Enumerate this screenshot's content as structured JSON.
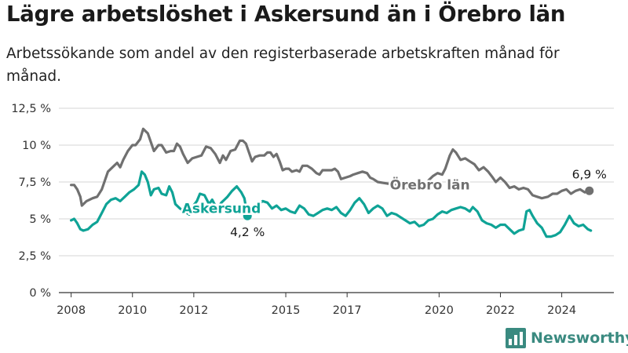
{
  "title": "Lägre arbetslöshet i Askersund än i Örebro län",
  "subtitle": "Arbetssökande som andel av den registerbaserade arbetskraften månad för månad.",
  "brand": {
    "name": "Newsworthy",
    "icon": "bar-chart-logo-icon",
    "color": "#3a8a80"
  },
  "chart_data": {
    "type": "line",
    "title": "Lägre arbetslöshet i Askersund än i Örebro län",
    "subtitle": "Arbetssökande som andel av den registerbaserade arbetskraften månad för månad.",
    "xlabel": "",
    "ylabel": "",
    "ylim": [
      0,
      12.5
    ],
    "xlim": [
      2007.6,
      2025.7
    ],
    "y_ticks": [
      0,
      2.5,
      5,
      7.5,
      10,
      12.5
    ],
    "y_tick_labels": [
      "0 %",
      "2,5 %",
      "5 %",
      "7,5 %",
      "10 %",
      "12,5 %"
    ],
    "x_ticks": [
      2008,
      2010,
      2012,
      2015,
      2017,
      2020,
      2022,
      2024
    ],
    "x_tick_labels": [
      "2008",
      "2010",
      "2012",
      "2015",
      "2017",
      "2020",
      "2022",
      "2024"
    ],
    "grid": true,
    "legend": "inline labels",
    "series": [
      {
        "name": "Örebro län",
        "color": "#707070",
        "end_label": "6,9 %",
        "points": [
          [
            2008.0,
            7.3
          ],
          [
            2008.1,
            7.3
          ],
          [
            2008.2,
            7.0
          ],
          [
            2008.3,
            6.5
          ],
          [
            2008.35,
            5.9
          ],
          [
            2008.5,
            6.2
          ],
          [
            2008.7,
            6.4
          ],
          [
            2008.85,
            6.5
          ],
          [
            2009.0,
            7.0
          ],
          [
            2009.1,
            7.6
          ],
          [
            2009.2,
            8.2
          ],
          [
            2009.4,
            8.6
          ],
          [
            2009.5,
            8.8
          ],
          [
            2009.6,
            8.5
          ],
          [
            2009.7,
            9.0
          ],
          [
            2009.85,
            9.6
          ],
          [
            2010.0,
            10.0
          ],
          [
            2010.1,
            10.0
          ],
          [
            2010.25,
            10.4
          ],
          [
            2010.35,
            11.1
          ],
          [
            2010.5,
            10.8
          ],
          [
            2010.6,
            10.2
          ],
          [
            2010.7,
            9.6
          ],
          [
            2010.85,
            10.0
          ],
          [
            2010.95,
            10.0
          ],
          [
            2011.1,
            9.5
          ],
          [
            2011.25,
            9.6
          ],
          [
            2011.35,
            9.6
          ],
          [
            2011.45,
            10.1
          ],
          [
            2011.55,
            9.9
          ],
          [
            2011.65,
            9.4
          ],
          [
            2011.8,
            8.8
          ],
          [
            2011.95,
            9.1
          ],
          [
            2012.1,
            9.2
          ],
          [
            2012.25,
            9.3
          ],
          [
            2012.4,
            9.9
          ],
          [
            2012.55,
            9.8
          ],
          [
            2012.7,
            9.4
          ],
          [
            2012.85,
            8.8
          ],
          [
            2012.95,
            9.3
          ],
          [
            2013.05,
            9.0
          ],
          [
            2013.2,
            9.6
          ],
          [
            2013.35,
            9.7
          ],
          [
            2013.5,
            10.3
          ],
          [
            2013.6,
            10.3
          ],
          [
            2013.7,
            10.1
          ],
          [
            2013.8,
            9.5
          ],
          [
            2013.9,
            8.9
          ],
          [
            2014.0,
            9.2
          ],
          [
            2014.15,
            9.3
          ],
          [
            2014.3,
            9.3
          ],
          [
            2014.4,
            9.5
          ],
          [
            2014.5,
            9.5
          ],
          [
            2014.6,
            9.2
          ],
          [
            2014.7,
            9.4
          ],
          [
            2014.8,
            8.9
          ],
          [
            2014.9,
            8.3
          ],
          [
            2015.0,
            8.4
          ],
          [
            2015.1,
            8.4
          ],
          [
            2015.2,
            8.2
          ],
          [
            2015.35,
            8.3
          ],
          [
            2015.45,
            8.2
          ],
          [
            2015.55,
            8.6
          ],
          [
            2015.7,
            8.6
          ],
          [
            2015.85,
            8.4
          ],
          [
            2016.0,
            8.1
          ],
          [
            2016.1,
            8.0
          ],
          [
            2016.2,
            8.3
          ],
          [
            2016.35,
            8.3
          ],
          [
            2016.5,
            8.3
          ],
          [
            2016.6,
            8.4
          ],
          [
            2016.7,
            8.2
          ],
          [
            2016.8,
            7.7
          ],
          [
            2016.95,
            7.8
          ],
          [
            2017.1,
            7.9
          ],
          [
            2017.2,
            8.0
          ],
          [
            2017.35,
            8.1
          ],
          [
            2017.5,
            8.2
          ],
          [
            2017.65,
            8.1
          ],
          [
            2017.75,
            7.8
          ],
          [
            2017.85,
            7.7
          ],
          [
            2018.0,
            7.5
          ],
          [
            2018.3,
            7.4
          ],
          [
            2018.6,
            7.3
          ],
          [
            2018.9,
            7.1
          ],
          [
            2019.3,
            7.0
          ],
          [
            2019.6,
            7.5
          ],
          [
            2019.8,
            7.9
          ],
          [
            2019.95,
            8.1
          ],
          [
            2020.1,
            8.0
          ],
          [
            2020.2,
            8.4
          ],
          [
            2020.35,
            9.3
          ],
          [
            2020.45,
            9.7
          ],
          [
            2020.55,
            9.5
          ],
          [
            2020.7,
            9.0
          ],
          [
            2020.85,
            9.1
          ],
          [
            2021.0,
            8.9
          ],
          [
            2021.15,
            8.7
          ],
          [
            2021.3,
            8.3
          ],
          [
            2021.45,
            8.5
          ],
          [
            2021.6,
            8.2
          ],
          [
            2021.75,
            7.8
          ],
          [
            2021.85,
            7.5
          ],
          [
            2022.0,
            7.8
          ],
          [
            2022.15,
            7.5
          ],
          [
            2022.3,
            7.1
          ],
          [
            2022.45,
            7.2
          ],
          [
            2022.6,
            7.0
          ],
          [
            2022.75,
            7.1
          ],
          [
            2022.9,
            7.0
          ],
          [
            2023.05,
            6.6
          ],
          [
            2023.2,
            6.5
          ],
          [
            2023.35,
            6.4
          ],
          [
            2023.55,
            6.5
          ],
          [
            2023.7,
            6.7
          ],
          [
            2023.85,
            6.7
          ],
          [
            2024.0,
            6.9
          ],
          [
            2024.15,
            7.0
          ],
          [
            2024.3,
            6.7
          ],
          [
            2024.45,
            6.9
          ],
          [
            2024.6,
            7.0
          ],
          [
            2024.75,
            6.8
          ],
          [
            2024.9,
            6.9
          ]
        ]
      },
      {
        "name": "Askersund",
        "color": "#0fa396",
        "end_label": "4,2 %",
        "points": [
          [
            2008.0,
            4.9
          ],
          [
            2008.1,
            5.0
          ],
          [
            2008.2,
            4.7
          ],
          [
            2008.3,
            4.3
          ],
          [
            2008.4,
            4.2
          ],
          [
            2008.55,
            4.3
          ],
          [
            2008.7,
            4.6
          ],
          [
            2008.85,
            4.8
          ],
          [
            2009.0,
            5.4
          ],
          [
            2009.15,
            6.0
          ],
          [
            2009.3,
            6.3
          ],
          [
            2009.45,
            6.4
          ],
          [
            2009.6,
            6.2
          ],
          [
            2009.75,
            6.5
          ],
          [
            2009.9,
            6.8
          ],
          [
            2010.05,
            7.0
          ],
          [
            2010.2,
            7.3
          ],
          [
            2010.3,
            8.2
          ],
          [
            2010.4,
            8.0
          ],
          [
            2010.5,
            7.5
          ],
          [
            2010.6,
            6.6
          ],
          [
            2010.7,
            7.0
          ],
          [
            2010.85,
            7.1
          ],
          [
            2010.95,
            6.7
          ],
          [
            2011.1,
            6.6
          ],
          [
            2011.2,
            7.2
          ],
          [
            2011.3,
            6.8
          ],
          [
            2011.4,
            6.0
          ],
          [
            2011.55,
            5.7
          ],
          [
            2011.7,
            5.5
          ],
          [
            2011.85,
            5.3
          ],
          [
            2011.95,
            5.8
          ],
          [
            2012.1,
            6.2
          ],
          [
            2012.2,
            6.7
          ],
          [
            2012.35,
            6.6
          ],
          [
            2012.5,
            6.0
          ],
          [
            2012.6,
            6.3
          ],
          [
            2012.7,
            5.9
          ],
          [
            2012.8,
            5.8
          ],
          [
            2012.9,
            6.1
          ],
          [
            2013.0,
            6.3
          ],
          [
            2013.1,
            6.5
          ],
          [
            2013.25,
            6.9
          ],
          [
            2013.4,
            7.2
          ],
          [
            2013.55,
            6.8
          ],
          [
            2013.65,
            6.4
          ],
          [
            2013.75,
            5.2
          ]
        ]
      },
      {
        "name": "Askersund",
        "color": "#0fa396",
        "points": [
          [
            2013.95,
            5.9
          ],
          [
            2014.1,
            6.0
          ],
          [
            2014.25,
            6.2
          ],
          [
            2014.4,
            6.1
          ],
          [
            2014.55,
            5.7
          ],
          [
            2014.7,
            5.9
          ],
          [
            2014.85,
            5.6
          ],
          [
            2015.0,
            5.7
          ],
          [
            2015.15,
            5.5
          ],
          [
            2015.3,
            5.4
          ],
          [
            2015.45,
            5.9
          ],
          [
            2015.6,
            5.7
          ],
          [
            2015.75,
            5.3
          ],
          [
            2015.9,
            5.2
          ],
          [
            2016.05,
            5.4
          ],
          [
            2016.2,
            5.6
          ],
          [
            2016.35,
            5.7
          ],
          [
            2016.5,
            5.6
          ],
          [
            2016.65,
            5.8
          ],
          [
            2016.8,
            5.4
          ],
          [
            2016.95,
            5.2
          ],
          [
            2017.1,
            5.6
          ],
          [
            2017.25,
            6.1
          ],
          [
            2017.4,
            6.4
          ],
          [
            2017.55,
            6.0
          ],
          [
            2017.7,
            5.4
          ],
          [
            2017.85,
            5.7
          ],
          [
            2018.0,
            5.9
          ],
          [
            2018.15,
            5.7
          ],
          [
            2018.3,
            5.2
          ],
          [
            2018.45,
            5.4
          ],
          [
            2018.6,
            5.3
          ],
          [
            2018.75,
            5.1
          ],
          [
            2018.9,
            4.9
          ],
          [
            2019.05,
            4.7
          ],
          [
            2019.2,
            4.8
          ],
          [
            2019.35,
            4.5
          ],
          [
            2019.5,
            4.6
          ],
          [
            2019.65,
            4.9
          ],
          [
            2019.8,
            5.0
          ],
          [
            2019.95,
            5.3
          ],
          [
            2020.1,
            5.5
          ],
          [
            2020.25,
            5.4
          ],
          [
            2020.4,
            5.6
          ],
          [
            2020.55,
            5.7
          ],
          [
            2020.7,
            5.8
          ],
          [
            2020.85,
            5.7
          ],
          [
            2021.0,
            5.5
          ],
          [
            2021.1,
            5.8
          ],
          [
            2021.25,
            5.5
          ],
          [
            2021.4,
            4.9
          ],
          [
            2021.55,
            4.7
          ],
          [
            2021.7,
            4.6
          ],
          [
            2021.85,
            4.4
          ],
          [
            2022.0,
            4.6
          ],
          [
            2022.15,
            4.6
          ],
          [
            2022.3,
            4.3
          ],
          [
            2022.45,
            4.0
          ],
          [
            2022.6,
            4.2
          ],
          [
            2022.75,
            4.3
          ],
          [
            2022.85,
            5.5
          ],
          [
            2022.95,
            5.6
          ],
          [
            2023.05,
            5.2
          ],
          [
            2023.2,
            4.7
          ],
          [
            2023.35,
            4.4
          ],
          [
            2023.5,
            3.8
          ],
          [
            2023.65,
            3.8
          ],
          [
            2023.8,
            3.9
          ],
          [
            2023.95,
            4.1
          ],
          [
            2024.1,
            4.6
          ],
          [
            2024.25,
            5.2
          ],
          [
            2024.4,
            4.7
          ],
          [
            2024.55,
            4.5
          ],
          [
            2024.7,
            4.6
          ],
          [
            2024.85,
            4.3
          ],
          [
            2024.95,
            4.2
          ]
        ]
      }
    ]
  }
}
